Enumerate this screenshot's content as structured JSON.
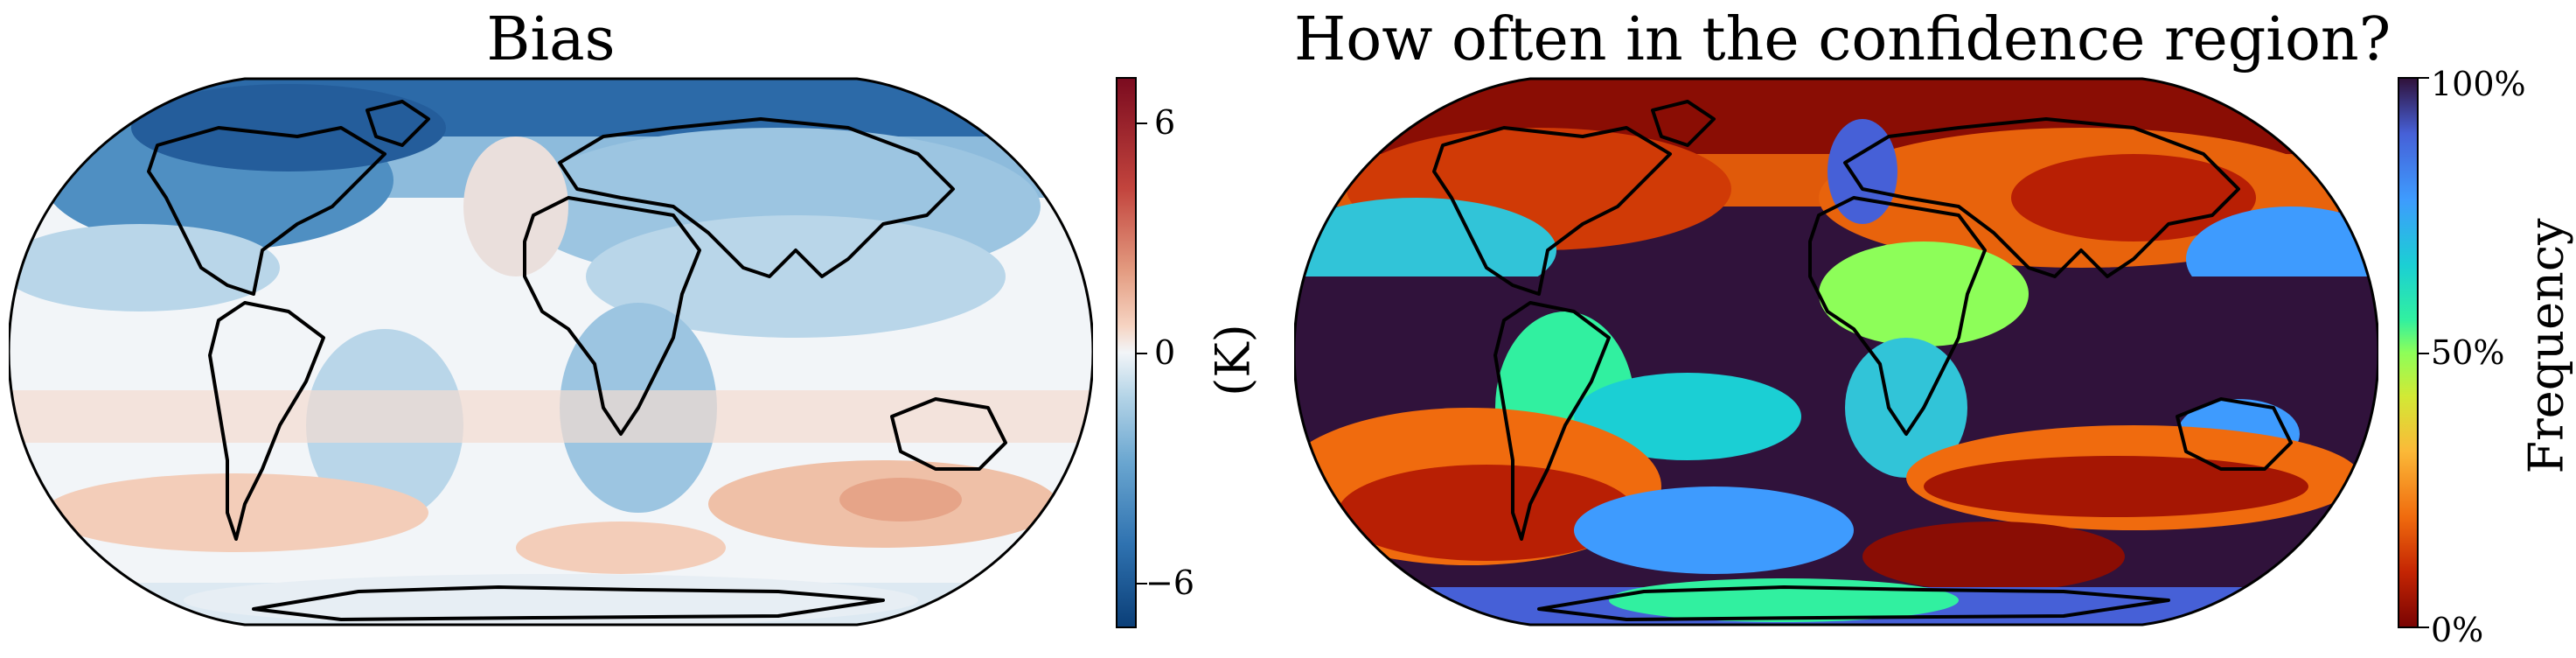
{
  "panels": {
    "bias": {
      "title": "Bias",
      "colorbar": {
        "label": "(K)",
        "ticks": [
          {
            "value": 6,
            "text": "6"
          },
          {
            "value": 0,
            "text": "0"
          },
          {
            "value": -6,
            "text": "−6"
          }
        ],
        "range": [
          -7.5,
          7.5
        ],
        "colormap": "RdBu_r (diverging blue-white-red)",
        "colors": [
          "#0b3f78",
          "#2f72b0",
          "#6aa6d0",
          "#b4d4e7",
          "#eef3f7",
          "#f6d3c1",
          "#e39b80",
          "#c2443d",
          "#7b0b1f"
        ]
      }
    },
    "coverage": {
      "title": "How often in the confidence region?",
      "colorbar": {
        "label": "Frequency",
        "ticks": [
          {
            "value": 100,
            "text": "100%"
          },
          {
            "value": 50,
            "text": "50%"
          },
          {
            "value": 0,
            "text": "0%"
          }
        ],
        "range": [
          0,
          100
        ],
        "colormap": "turbo (reversed)",
        "colors": [
          "#7a0403",
          "#c42503",
          "#f06b0e",
          "#fbb938",
          "#d2e935",
          "#8dfe59",
          "#31f0a0",
          "#1bcfd4",
          "#3e9bfe",
          "#4660d7",
          "#30123b"
        ]
      }
    }
  }
}
